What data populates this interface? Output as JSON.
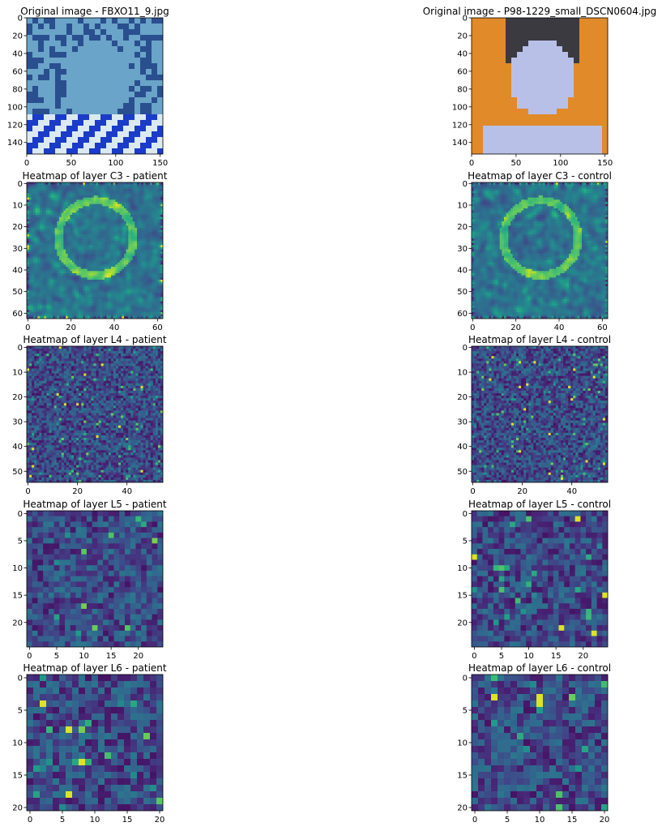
{
  "figure": {
    "colormap": "viridis",
    "background": "#ffffff"
  },
  "chart_data": [
    {
      "type": "heatmap",
      "title": "Original image - FBXO11_9.jpg",
      "image_kind": "photo",
      "photo_palette": [
        "#6aa4c8",
        "#2a4f8f",
        "#dbe9f2",
        "#1a3cc8"
      ],
      "xlim": [
        0,
        153
      ],
      "ylim": [
        153,
        0
      ],
      "xticks": [
        0,
        50,
        100,
        150
      ],
      "yticks": [
        0,
        20,
        40,
        60,
        80,
        100,
        120,
        140
      ]
    },
    {
      "type": "heatmap",
      "title": "Original image - P98-1229_small_DSCN0604.jpg",
      "image_kind": "photo",
      "photo_palette": [
        "#e08a2a",
        "#b8c0e8",
        "#3a3a40",
        "#f5b060"
      ],
      "xlim": [
        0,
        153
      ],
      "ylim": [
        153,
        0
      ],
      "xticks": [
        0,
        50,
        100,
        150
      ],
      "yticks": [
        0,
        20,
        40,
        60,
        80,
        100,
        120,
        140
      ]
    },
    {
      "type": "heatmap",
      "title": "Heatmap of layer C3 - patient",
      "grid_size": 63,
      "smooth": true,
      "seed": 11,
      "xticks": [
        0,
        20,
        40,
        60
      ],
      "yticks": [
        0,
        10,
        20,
        30,
        40,
        50,
        60
      ]
    },
    {
      "type": "heatmap",
      "title": "Heatmap of layer C3 - control",
      "grid_size": 63,
      "smooth": true,
      "seed": 23,
      "xticks": [
        0,
        20,
        40,
        60
      ],
      "yticks": [
        0,
        10,
        20,
        30,
        40,
        50,
        60
      ]
    },
    {
      "type": "heatmap",
      "title": "Heatmap of layer L4 - patient",
      "grid_size": 55,
      "smooth": false,
      "seed": 37,
      "xticks": [
        0,
        20,
        40
      ],
      "yticks": [
        0,
        10,
        20,
        30,
        40,
        50
      ]
    },
    {
      "type": "heatmap",
      "title": "Heatmap of layer L4 - control",
      "grid_size": 55,
      "smooth": false,
      "seed": 41,
      "xticks": [
        0,
        20,
        40
      ],
      "yticks": [
        0,
        10,
        20,
        30,
        40,
        50
      ]
    },
    {
      "type": "heatmap",
      "title": "Heatmap of layer L5 - patient",
      "grid_size": 25,
      "smooth": false,
      "seed": 53,
      "xticks": [
        0,
        5,
        10,
        15,
        20
      ],
      "yticks": [
        0,
        5,
        10,
        15,
        20
      ]
    },
    {
      "type": "heatmap",
      "title": "Heatmap of layer L5 - control",
      "grid_size": 25,
      "smooth": false,
      "seed": 59,
      "xticks": [
        0,
        5,
        10,
        15,
        20
      ],
      "yticks": [
        0,
        5,
        10,
        15,
        20
      ]
    },
    {
      "type": "heatmap",
      "title": "Heatmap of layer L6 - patient",
      "grid_size": 21,
      "smooth": false,
      "seed": 67,
      "xticks": [
        0,
        5,
        10,
        15,
        20
      ],
      "yticks": [
        0,
        5,
        10,
        15,
        20
      ]
    },
    {
      "type": "heatmap",
      "title": "Heatmap of layer L6 - control",
      "grid_size": 21,
      "smooth": false,
      "seed": 71,
      "xticks": [
        0,
        5,
        10,
        15,
        20
      ],
      "yticks": [
        0,
        5,
        10,
        15,
        20
      ]
    }
  ]
}
